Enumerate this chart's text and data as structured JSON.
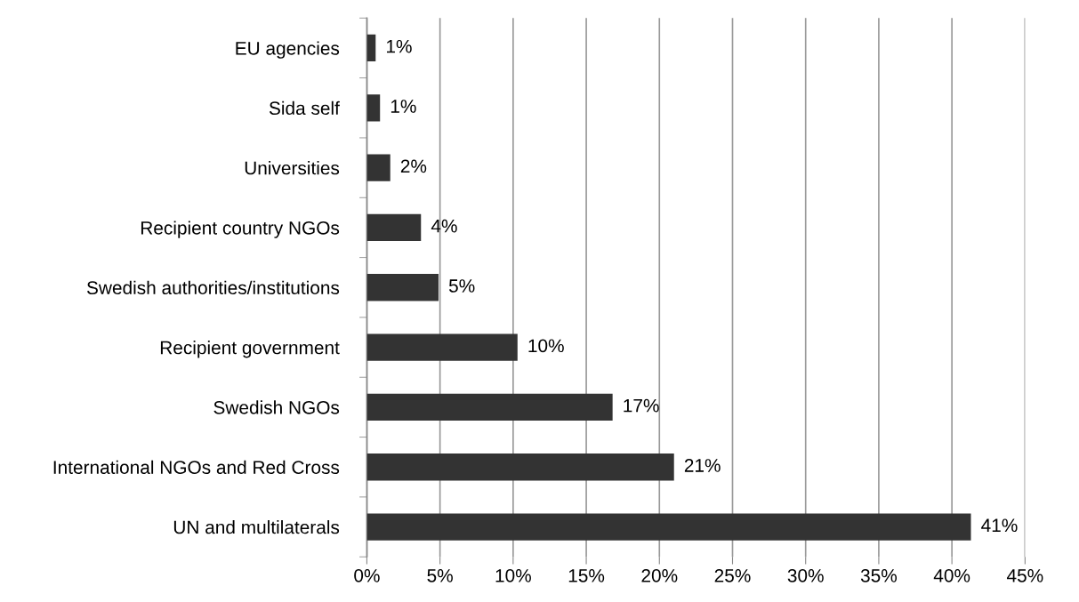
{
  "chart_data": {
    "type": "bar",
    "orientation": "horizontal",
    "categories": [
      "EU agencies",
      "Sida self",
      "Universities",
      "Recipient country NGOs",
      "Swedish authorities/institutions",
      "Recipient government",
      "Swedish NGOs",
      "International NGOs and Red Cross",
      "UN and multilaterals"
    ],
    "values": [
      0.6,
      0.9,
      1.6,
      3.7,
      4.9,
      10.3,
      16.8,
      21.0,
      41.3
    ],
    "value_labels": [
      "1%",
      "1%",
      "2%",
      "4%",
      "5%",
      "10%",
      "17%",
      "21%",
      "41%"
    ],
    "color": "#333333",
    "xlim": [
      0,
      45
    ],
    "xticks": [
      {
        "value": 0,
        "label": "0%"
      },
      {
        "value": 5,
        "label": "5%"
      },
      {
        "value": 10,
        "label": "10%"
      },
      {
        "value": 15,
        "label": "15%"
      },
      {
        "value": 20,
        "label": "20%"
      },
      {
        "value": 25,
        "label": "25%"
      },
      {
        "value": 30,
        "label": "30%"
      },
      {
        "value": 35,
        "label": "35%"
      },
      {
        "value": 40,
        "label": "40%"
      },
      {
        "value": 45,
        "label": "45%"
      }
    ],
    "grid": "x",
    "legend": false
  }
}
